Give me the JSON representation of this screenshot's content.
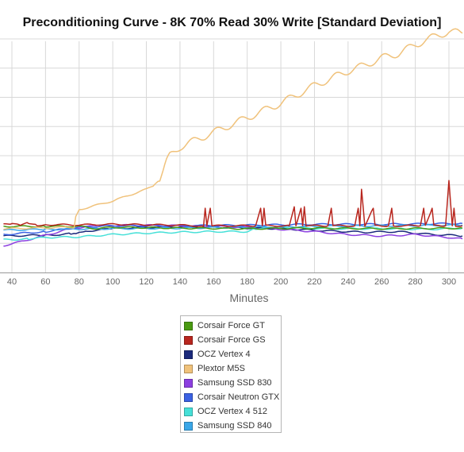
{
  "chart_data": {
    "type": "line",
    "title": "Preconditioning Curve - 8K 70% Read 30% Write [Standard Deviation]",
    "xlabel": "Minutes",
    "ylabel": "",
    "x_ticks": [
      40,
      60,
      80,
      100,
      120,
      140,
      160,
      180,
      200,
      220,
      240,
      260,
      280,
      300
    ],
    "xlim": [
      35,
      308
    ],
    "ylim": [
      0,
      8.6
    ],
    "y_gridlines": [
      1,
      2,
      3,
      4,
      5,
      6,
      7,
      8
    ],
    "grid": true,
    "legend_position": "bottom",
    "series": [
      {
        "name": "Corsair Force GT",
        "color": "#4a9a12",
        "points": [
          [
            35,
            1.58
          ],
          [
            60,
            1.58
          ],
          [
            80,
            1.58
          ],
          [
            90,
            1.5
          ],
          [
            100,
            1.55
          ],
          [
            140,
            1.52
          ],
          [
            180,
            1.5
          ],
          [
            220,
            1.52
          ],
          [
            260,
            1.5
          ],
          [
            308,
            1.52
          ]
        ]
      },
      {
        "name": "Corsair Force GS",
        "color": "#b8261e",
        "points": [
          [
            35,
            1.64
          ],
          [
            40,
            1.66
          ],
          [
            45,
            1.62
          ],
          [
            50,
            1.7
          ],
          [
            55,
            1.62
          ],
          [
            60,
            1.64
          ],
          [
            80,
            1.63
          ],
          [
            100,
            1.65
          ],
          [
            140,
            1.62
          ],
          [
            150,
            1.6
          ],
          [
            154,
            1.58
          ],
          [
            155,
            2.2
          ],
          [
            156,
            1.6
          ],
          [
            158,
            2.2
          ],
          [
            159,
            1.6
          ],
          [
            185,
            1.6
          ],
          [
            188,
            2.2
          ],
          [
            189,
            1.6
          ],
          [
            190,
            2.2
          ],
          [
            191,
            1.6
          ],
          [
            205,
            1.6
          ],
          [
            208,
            2.25
          ],
          [
            209,
            1.6
          ],
          [
            212,
            2.2
          ],
          [
            213,
            1.6
          ],
          [
            214,
            2.25
          ],
          [
            215,
            1.6
          ],
          [
            228,
            1.6
          ],
          [
            230,
            2.2
          ],
          [
            231,
            1.6
          ],
          [
            244,
            1.6
          ],
          [
            246,
            2.2
          ],
          [
            247,
            1.6
          ],
          [
            248,
            2.85
          ],
          [
            250,
            1.6
          ],
          [
            255,
            2.2
          ],
          [
            256,
            1.6
          ],
          [
            264,
            1.6
          ],
          [
            266,
            2.2
          ],
          [
            267,
            1.6
          ],
          [
            283,
            1.6
          ],
          [
            285,
            2.2
          ],
          [
            286,
            1.6
          ],
          [
            290,
            2.2
          ],
          [
            291,
            1.6
          ],
          [
            298,
            1.6
          ],
          [
            300,
            3.15
          ],
          [
            302,
            1.6
          ],
          [
            303,
            2.2
          ],
          [
            304,
            1.6
          ],
          [
            308,
            1.6
          ]
        ]
      },
      {
        "name": "OCZ Vertex 4",
        "color": "#1b2a7c",
        "points": [
          [
            35,
            1.25
          ],
          [
            60,
            1.28
          ],
          [
            70,
            1.3
          ],
          [
            75,
            1.33
          ],
          [
            78,
            1.34
          ],
          [
            80,
            1.4
          ],
          [
            85,
            1.42
          ],
          [
            100,
            1.5
          ],
          [
            120,
            1.55
          ],
          [
            140,
            1.57
          ],
          [
            160,
            1.55
          ],
          [
            200,
            1.5
          ],
          [
            230,
            1.42
          ],
          [
            250,
            1.38
          ],
          [
            270,
            1.4
          ],
          [
            290,
            1.3
          ],
          [
            300,
            1.28
          ],
          [
            308,
            1.25
          ]
        ]
      },
      {
        "name": "Plextor M5S",
        "color": "#f0c27b",
        "points": [
          [
            35,
            1.5
          ],
          [
            75,
            1.55
          ],
          [
            77,
            1.55
          ],
          [
            78,
            1.9
          ],
          [
            80,
            2.15
          ],
          [
            90,
            2.3
          ],
          [
            100,
            2.45
          ],
          [
            110,
            2.65
          ],
          [
            120,
            2.85
          ],
          [
            125,
            3
          ],
          [
            128,
            3.15
          ],
          [
            130,
            3.5
          ],
          [
            132,
            3.8
          ],
          [
            134,
            4
          ],
          [
            140,
            4.3
          ],
          [
            150,
            4.55
          ],
          [
            160,
            4.8
          ],
          [
            170,
            5.05
          ],
          [
            180,
            5.3
          ],
          [
            190,
            5.55
          ],
          [
            200,
            5.8
          ],
          [
            210,
            6.1
          ],
          [
            220,
            6.4
          ],
          [
            230,
            6.65
          ],
          [
            240,
            6.9
          ],
          [
            250,
            7.1
          ],
          [
            260,
            7.35
          ],
          [
            270,
            7.5
          ],
          [
            280,
            7.8
          ],
          [
            290,
            8.05
          ],
          [
            300,
            8.25
          ],
          [
            308,
            8.2
          ]
        ]
      },
      {
        "name": "Samsung SSD 830",
        "color": "#8c3fe0",
        "points": [
          [
            35,
            0.92
          ],
          [
            45,
            1.05
          ],
          [
            55,
            1.2
          ],
          [
            65,
            1.35
          ],
          [
            75,
            1.5
          ],
          [
            90,
            1.6
          ],
          [
            110,
            1.62
          ],
          [
            140,
            1.6
          ],
          [
            180,
            1.55
          ],
          [
            200,
            1.48
          ],
          [
            220,
            1.4
          ],
          [
            240,
            1.3
          ],
          [
            260,
            1.25
          ],
          [
            280,
            1.3
          ],
          [
            300,
            1.2
          ],
          [
            308,
            1.15
          ]
        ]
      },
      {
        "name": "Corsair Neutron GTX",
        "color": "#3b62e3",
        "points": [
          [
            35,
            1.3
          ],
          [
            60,
            1.4
          ],
          [
            80,
            1.55
          ],
          [
            100,
            1.6
          ],
          [
            140,
            1.6
          ],
          [
            180,
            1.62
          ],
          [
            220,
            1.65
          ],
          [
            260,
            1.65
          ],
          [
            308,
            1.68
          ]
        ]
      },
      {
        "name": "OCZ Vertex 4 512",
        "color": "#46e0d8",
        "points": [
          [
            35,
            1.12
          ],
          [
            50,
            1.15
          ],
          [
            60,
            1.2
          ],
          [
            80,
            1.22
          ],
          [
            100,
            1.3
          ],
          [
            120,
            1.35
          ],
          [
            140,
            1.38
          ],
          [
            160,
            1.4
          ],
          [
            180,
            1.4
          ],
          [
            185,
            1.5
          ],
          [
            200,
            1.55
          ],
          [
            230,
            1.5
          ],
          [
            260,
            1.5
          ],
          [
            290,
            1.48
          ],
          [
            308,
            1.52
          ]
        ]
      },
      {
        "name": "Samsung SSD 840",
        "color": "#3aa7e8",
        "points": [
          [
            35,
            1.45
          ],
          [
            60,
            1.48
          ],
          [
            100,
            1.5
          ],
          [
            140,
            1.52
          ],
          [
            180,
            1.55
          ],
          [
            220,
            1.58
          ],
          [
            260,
            1.6
          ],
          [
            308,
            1.62
          ]
        ]
      }
    ]
  }
}
